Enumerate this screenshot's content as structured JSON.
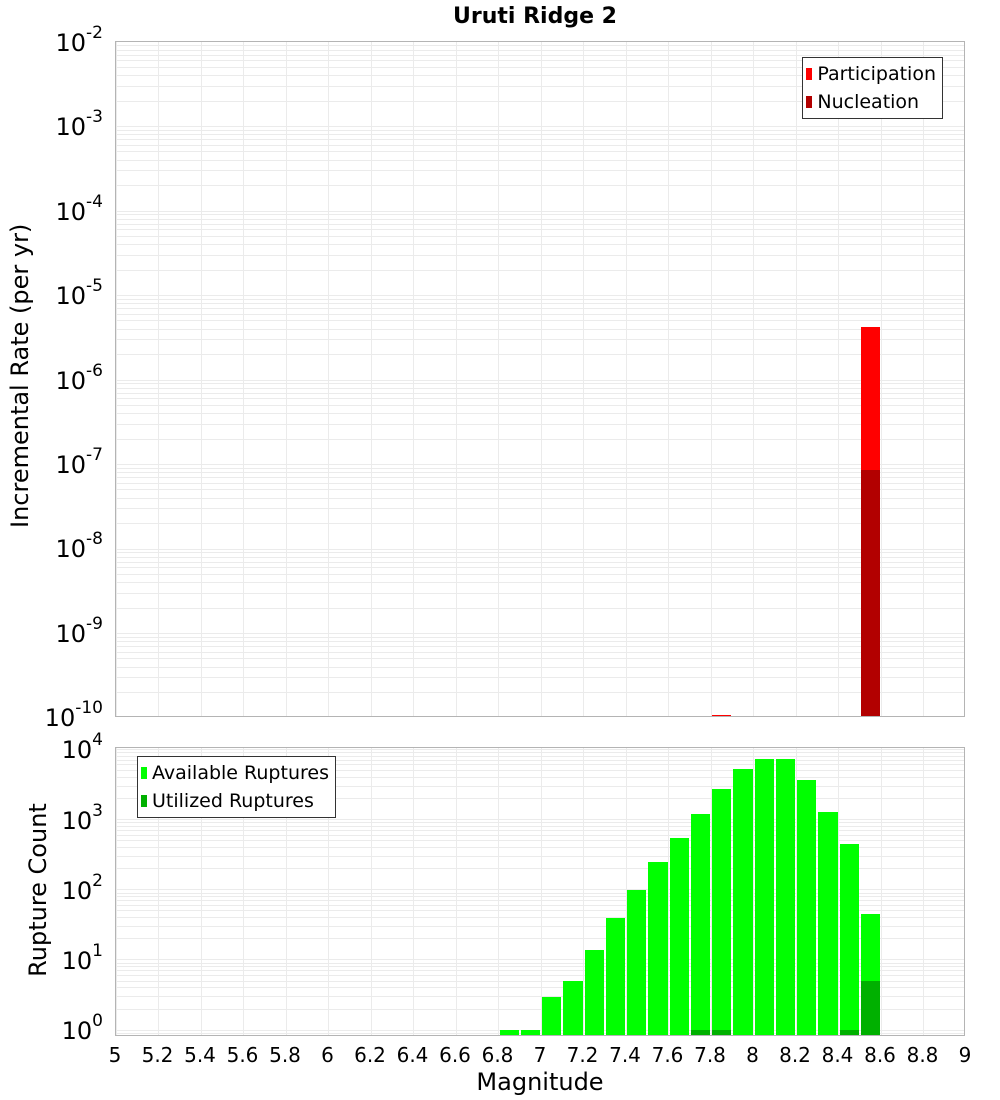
{
  "title": "Uruti Ridge 2",
  "colors": {
    "participation": "#ff0000",
    "nucleation": "#b20000",
    "available": "#00ff00",
    "utilized": "#00b000",
    "grid": "#ebebeb",
    "frame": "#b4b4b4"
  },
  "top_plot": {
    "ylabel": "Incremental Rate (per yr)",
    "y_ticks": [
      {
        "base": "10",
        "exp": "-2"
      },
      {
        "base": "10",
        "exp": "-3"
      },
      {
        "base": "10",
        "exp": "-4"
      },
      {
        "base": "10",
        "exp": "-5"
      },
      {
        "base": "10",
        "exp": "-6"
      },
      {
        "base": "10",
        "exp": "-7"
      },
      {
        "base": "10",
        "exp": "-8"
      },
      {
        "base": "10",
        "exp": "-9"
      },
      {
        "base": "10",
        "exp": "-10"
      }
    ],
    "legend": [
      "Participation",
      "Nucleation"
    ]
  },
  "bottom_plot": {
    "ylabel": "Rupture Count",
    "y_ticks": [
      {
        "base": "10",
        "exp": "4"
      },
      {
        "base": "10",
        "exp": "3"
      },
      {
        "base": "10",
        "exp": "2"
      },
      {
        "base": "10",
        "exp": "1"
      },
      {
        "base": "10",
        "exp": "0"
      }
    ],
    "legend": [
      "Available Ruptures",
      "Utilized Ruptures"
    ]
  },
  "x_axis": {
    "label": "Magnitude",
    "ticks": [
      "5",
      "5.2",
      "5.4",
      "5.6",
      "5.8",
      "6",
      "6.2",
      "6.4",
      "6.6",
      "6.8",
      "7",
      "7.2",
      "7.4",
      "7.6",
      "7.8",
      "8",
      "8.2",
      "8.4",
      "8.6",
      "8.8",
      "9"
    ]
  },
  "chart_data": [
    {
      "type": "bar",
      "title": "Uruti Ridge 2",
      "xlabel": "Magnitude",
      "ylabel": "Incremental Rate (per yr)",
      "yscale": "log",
      "xlim": [
        5,
        9
      ],
      "ylim": [
        1e-10,
        0.01
      ],
      "grid": true,
      "legend_position": "top-right",
      "bin_width": 0.1,
      "series": [
        {
          "name": "Participation",
          "color": "#ff0000",
          "x": [
            7.85,
            8.55
          ],
          "values": [
            1.1e-10,
            4.2e-06
          ]
        },
        {
          "name": "Nucleation",
          "color": "#b20000",
          "x": [
            8.55
          ],
          "values": [
            8.5e-08
          ]
        }
      ]
    },
    {
      "type": "bar",
      "title": "",
      "xlabel": "Magnitude",
      "ylabel": "Rupture Count",
      "yscale": "log",
      "xlim": [
        5,
        9
      ],
      "ylim": [
        0.8,
        10000
      ],
      "grid": true,
      "legend_position": "top-left",
      "bin_width": 0.1,
      "x": [
        6.85,
        6.95,
        7.05,
        7.15,
        7.25,
        7.35,
        7.45,
        7.55,
        7.65,
        7.75,
        7.85,
        7.95,
        8.05,
        8.15,
        8.25,
        8.35,
        8.45,
        8.55
      ],
      "series": [
        {
          "name": "Available Ruptures",
          "color": "#00ff00",
          "values": [
            1,
            1,
            3,
            5,
            14,
            40,
            100,
            250,
            550,
            1200,
            2700,
            5300,
            7400,
            7200,
            3700,
            1300,
            450,
            45
          ]
        },
        {
          "name": "Utilized Ruptures",
          "color": "#00b000",
          "values": [
            0,
            0,
            0,
            0,
            0,
            0,
            0,
            0,
            0,
            1,
            1,
            0,
            0,
            0,
            0,
            0,
            1,
            5
          ]
        }
      ]
    }
  ]
}
